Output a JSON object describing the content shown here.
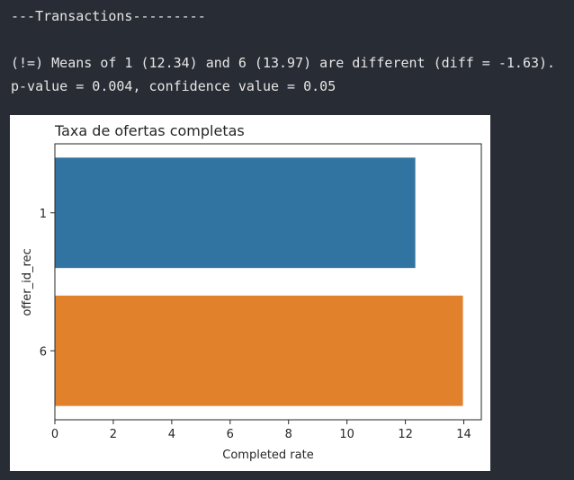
{
  "output": {
    "header": "---Transactions---------",
    "means_line": "(!=) Means of 1 (12.34) and 6 (13.97) are different (diff = -1.63).",
    "pvalue_line": "p-value = 0.004, confidence value = 0.05"
  },
  "chart_data": {
    "type": "bar",
    "orientation": "horizontal",
    "title": "Taxa de ofertas completas",
    "xlabel": "Completed rate",
    "ylabel": "offer_id_rec",
    "categories": [
      "1",
      "6"
    ],
    "values": [
      12.34,
      13.97
    ],
    "colors": [
      "#3274a1",
      "#e1812c"
    ],
    "xlim": [
      0,
      14.6
    ],
    "xticks": [
      "0",
      "2",
      "4",
      "6",
      "8",
      "10",
      "12",
      "14"
    ],
    "grid": false,
    "legend": "none"
  }
}
